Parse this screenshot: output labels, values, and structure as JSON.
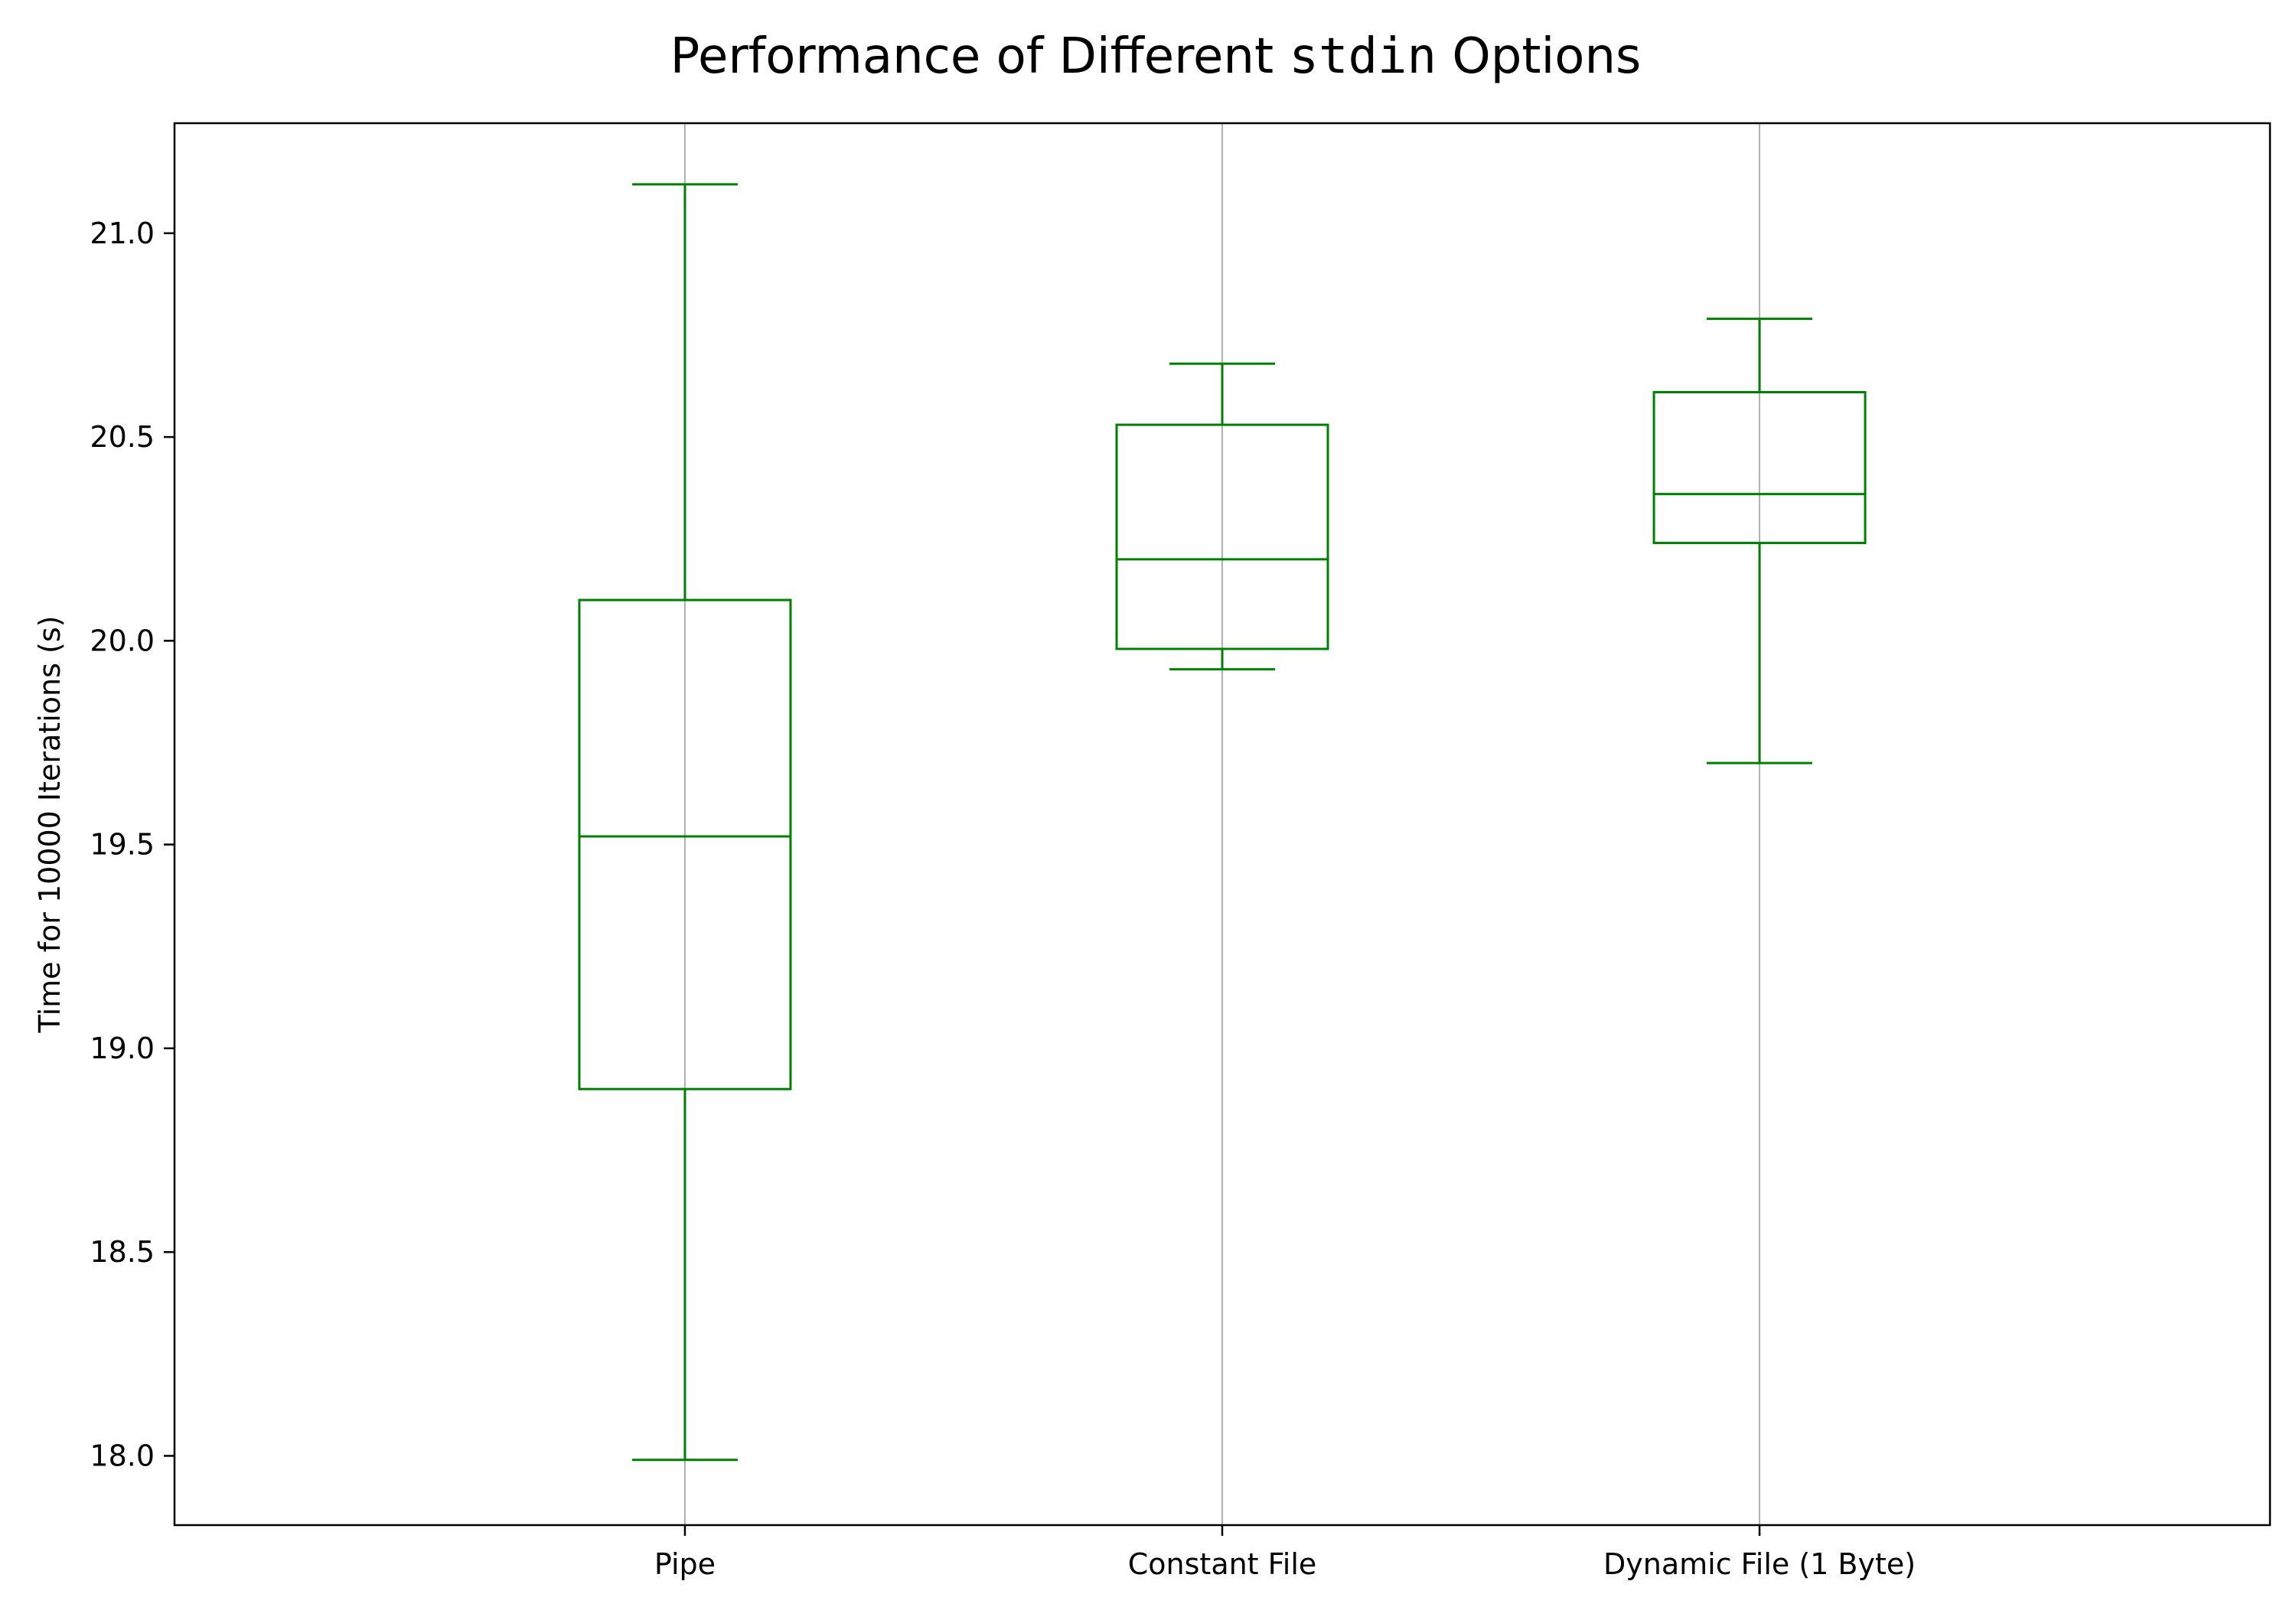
{
  "chart_data": {
    "type": "box",
    "title_parts": [
      {
        "text": "Performance of Different ",
        "mono": false
      },
      {
        "text": "stdin",
        "mono": true
      },
      {
        "text": " Options",
        "mono": false
      }
    ],
    "xlabel": "",
    "ylabel": "Time for 10000 Iterations (s)",
    "ylim": [
      17.83,
      21.27
    ],
    "yticks": [
      18.0,
      18.5,
      19.0,
      19.5,
      20.0,
      20.5,
      21.0
    ],
    "ytick_labels": [
      "18.0",
      "18.5",
      "19.0",
      "19.5",
      "20.0",
      "20.5",
      "21.0"
    ],
    "categories": [
      "Pipe",
      "Constant File",
      "Dynamic File (1 Byte)"
    ],
    "boxes": [
      {
        "category": "Pipe",
        "whisker_low": 17.99,
        "q1": 18.9,
        "median": 19.52,
        "q3": 20.1,
        "whisker_high": 21.12
      },
      {
        "category": "Constant File",
        "whisker_low": 19.93,
        "q1": 19.98,
        "median": 20.2,
        "q3": 20.53,
        "whisker_high": 20.68
      },
      {
        "category": "Dynamic File (1 Byte)",
        "whisker_low": 19.7,
        "q1": 20.24,
        "median": 20.36,
        "q3": 20.61,
        "whisker_high": 20.79
      }
    ],
    "grid": {
      "x": true,
      "y": false
    },
    "colors": {
      "box": "#008000",
      "grid": "#b0b0b0",
      "axes": "#000000"
    }
  }
}
